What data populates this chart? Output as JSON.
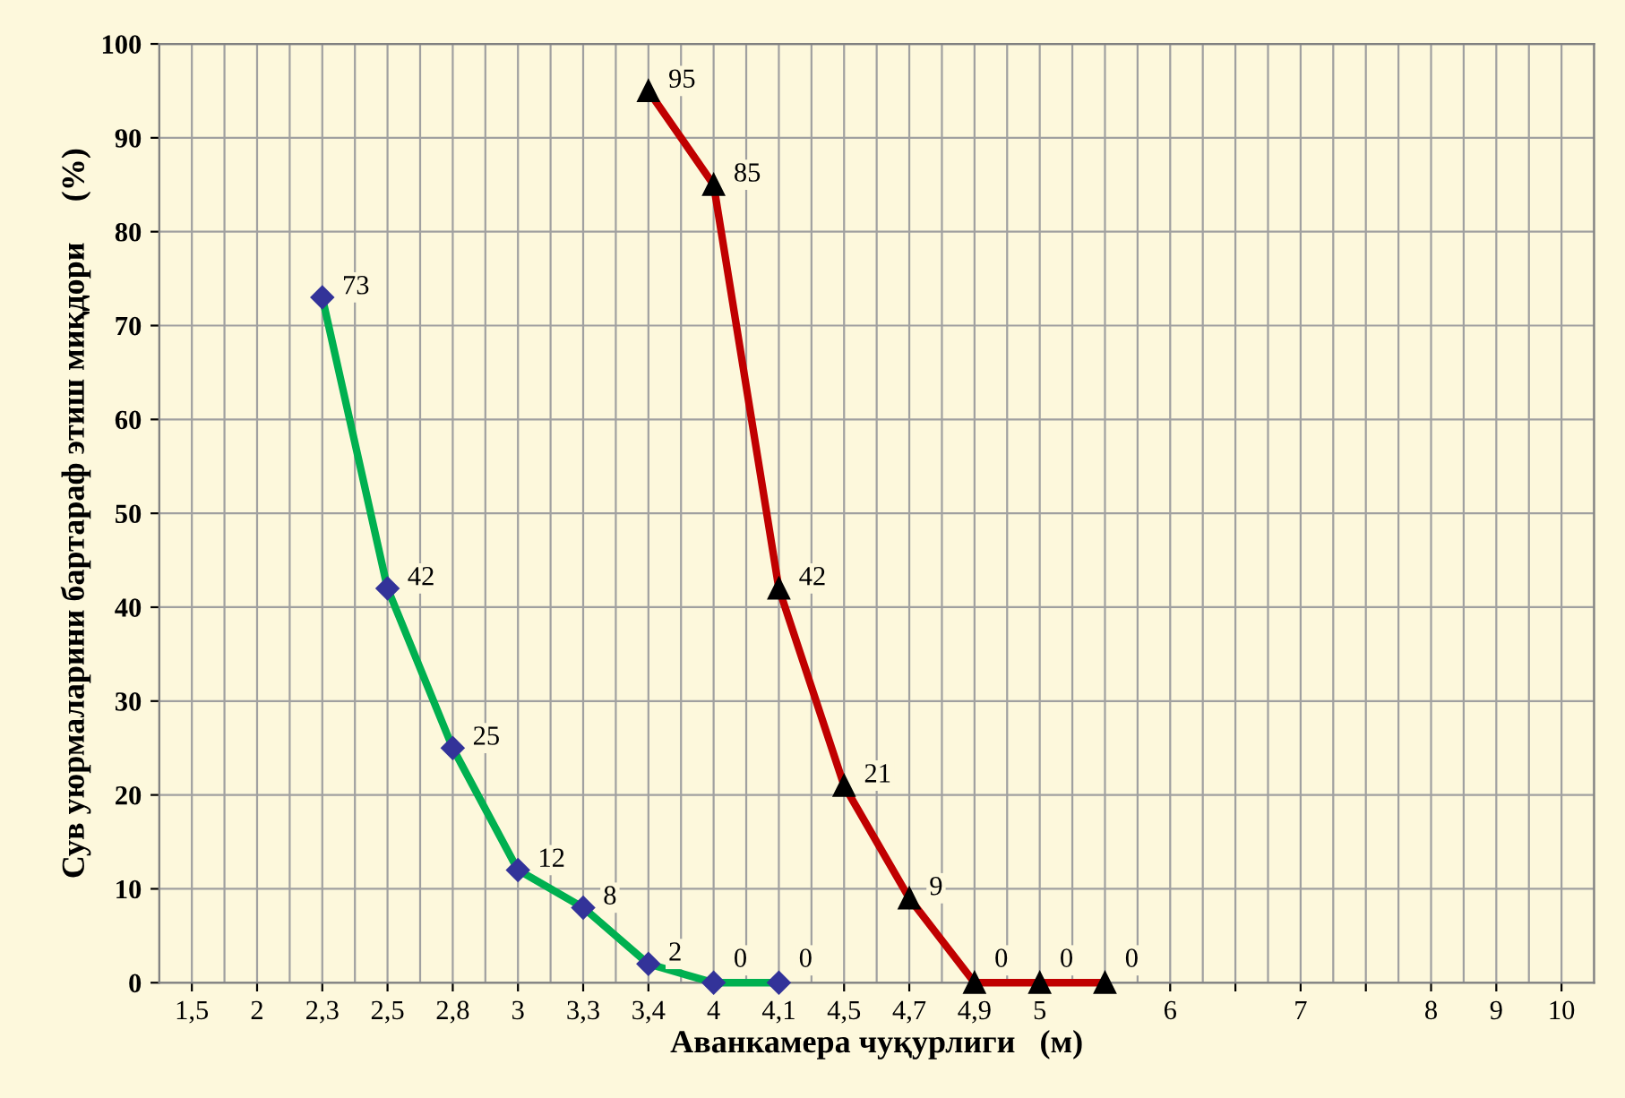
{
  "chart_data": {
    "type": "line",
    "xlabel": "Аванкамера чуқурлиги   (м)",
    "ylabel": "Сув уюрмаларини бартараф этиш миқдори     (%)",
    "categories": [
      "1,5",
      "2",
      "2,3",
      "2,5",
      "2,8",
      "3",
      "3,3",
      "3,4",
      "4",
      "4,1",
      "4,5",
      "4,7",
      "4,9",
      "5",
      null,
      "6",
      null,
      "7",
      null,
      "8",
      "9",
      "10"
    ],
    "series": [
      {
        "color": "#00b050",
        "marker": "diamond",
        "colors": [
          null,
          null,
          "#333399",
          "#333399",
          "#333399",
          "#333399",
          "#333399",
          "#333399",
          "#333399",
          "#333399",
          null,
          null,
          null,
          null,
          null,
          null,
          null,
          null,
          null,
          null,
          null,
          null
        ],
        "values": [
          null,
          null,
          73,
          42,
          25,
          12,
          8,
          2,
          0,
          0,
          null,
          null,
          null,
          null,
          null,
          null,
          null,
          null,
          null,
          null,
          null,
          null
        ]
      },
      {
        "color": "#c00000",
        "marker": "triangle",
        "colors": [
          null,
          null,
          null,
          null,
          null,
          null,
          null,
          "#000000",
          "#000000",
          "#000000",
          "#000000",
          "#000000",
          "#000000",
          "#000000",
          "#000000",
          null,
          null,
          null,
          null,
          null,
          null,
          null
        ],
        "values": [
          null,
          null,
          null,
          null,
          null,
          null,
          null,
          95,
          85,
          42,
          21,
          9,
          0,
          0,
          0,
          null,
          null,
          null,
          null,
          null,
          null,
          null
        ]
      }
    ],
    "ylim": [
      0,
      100
    ],
    "yticks": [
      0,
      10,
      20,
      30,
      40,
      50,
      60,
      70,
      80,
      90,
      100
    ],
    "grid": true,
    "data_labels": true,
    "line_style": "solid"
  }
}
